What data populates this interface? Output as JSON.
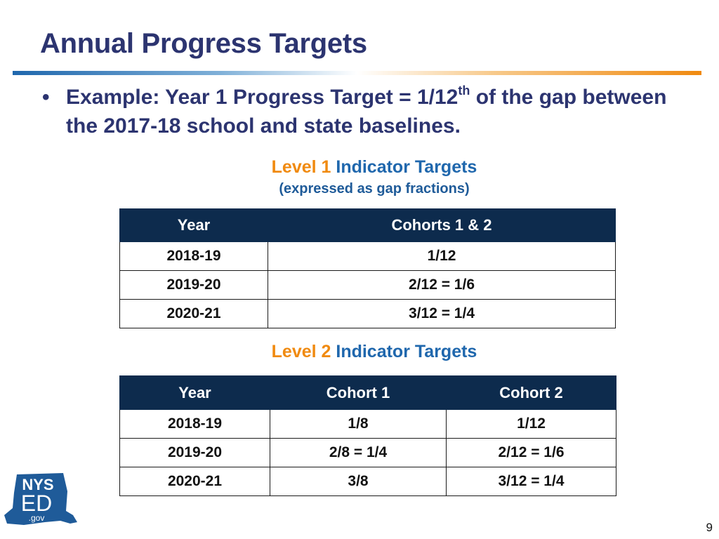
{
  "slide": {
    "title": "Annual Progress Targets",
    "bullet": {
      "marker": "•",
      "text_before_sup": "Example: Year 1 Progress Target = 1/12",
      "sup": "th",
      "text_after_sup": " of the gap between the 2017-18 school and state baselines."
    },
    "page_number": "9"
  },
  "level1": {
    "level_label": "Level 1",
    "title_rest": " Indicator Targets",
    "subtitle": "(expressed as gap fractions)",
    "headers": [
      "Year",
      "Cohorts 1 & 2"
    ],
    "rows": [
      [
        "2018-19",
        "1/12"
      ],
      [
        "2019-20",
        "2/12 = 1/6"
      ],
      [
        "2020-21",
        "3/12 = 1/4"
      ]
    ]
  },
  "level2": {
    "level_label": "Level 2",
    "title_rest": " Indicator Targets",
    "headers": [
      "Year",
      "Cohort 1",
      "Cohort 2"
    ],
    "rows": [
      [
        "2018-19",
        "1/8",
        "1/12"
      ],
      [
        "2019-20",
        "2/8 = 1/4",
        "2/12 = 1/6"
      ],
      [
        "2020-21",
        "3/8",
        "3/12 = 1/4"
      ]
    ]
  },
  "logo": {
    "line1": "NYS",
    "line2": "ED",
    "line3": ".gov",
    "colors": {
      "state_shape": "#1f5b99",
      "text": "#ffffff"
    }
  },
  "colors": {
    "title": "#2c3470",
    "level_accent": "#f08a10",
    "indicator_blue": "#1f67ad",
    "table_header": "#0d2b4d"
  }
}
